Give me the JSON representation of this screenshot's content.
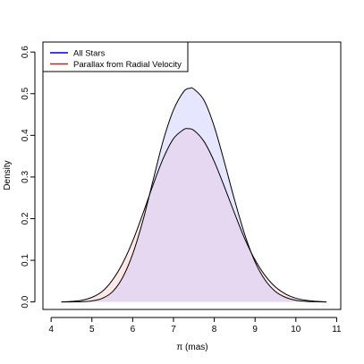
{
  "chart_data": {
    "type": "area",
    "title": "",
    "xlabel": "π (mas)",
    "ylabel": "Density",
    "xlim": [
      3.8,
      11.1
    ],
    "ylim": [
      -0.018,
      0.624
    ],
    "xticks": [
      4,
      5,
      6,
      7,
      8,
      9,
      10,
      11
    ],
    "yticks": [
      0.0,
      0.1,
      0.2,
      0.3,
      0.4,
      0.5,
      0.6
    ],
    "ytick_labels": [
      "0.0",
      "0.1",
      "0.2",
      "0.3",
      "0.4",
      "0.5",
      "0.6"
    ],
    "legend_position": "top-left",
    "grid": false,
    "series": [
      {
        "name": "All Stars",
        "color": "#0000cc",
        "fill": "rgba(190,190,255,0.38)",
        "x": [
          4.25,
          4.5,
          4.75,
          5.0,
          5.25,
          5.5,
          5.75,
          6.0,
          6.25,
          6.5,
          6.75,
          7.0,
          7.25,
          7.4,
          7.5,
          7.75,
          8.0,
          8.25,
          8.5,
          8.75,
          9.0,
          9.25,
          9.5,
          9.75,
          10.0,
          10.25,
          10.5,
          10.75
        ],
        "values": [
          0.0,
          0.0001,
          0.0006,
          0.0025,
          0.0085,
          0.024,
          0.058,
          0.115,
          0.195,
          0.292,
          0.388,
          0.461,
          0.505,
          0.513,
          0.511,
          0.484,
          0.421,
          0.335,
          0.244,
          0.161,
          0.096,
          0.052,
          0.025,
          0.011,
          0.004,
          0.0013,
          0.0004,
          0.0
        ]
      },
      {
        "name": "Parallax from Radial Velocity",
        "color": "#ee1111",
        "fill": "rgba(255,205,205,0.45)",
        "x": [
          4.25,
          4.5,
          4.75,
          5.0,
          5.25,
          5.5,
          5.75,
          6.0,
          6.25,
          6.5,
          6.75,
          7.0,
          7.25,
          7.35,
          7.5,
          7.75,
          8.0,
          8.25,
          8.5,
          8.75,
          9.0,
          9.25,
          9.5,
          9.75,
          10.0,
          10.25,
          10.5,
          10.75
        ],
        "values": [
          0.0,
          0.0012,
          0.004,
          0.011,
          0.025,
          0.052,
          0.092,
          0.146,
          0.212,
          0.281,
          0.345,
          0.392,
          0.414,
          0.416,
          0.412,
          0.385,
          0.337,
          0.276,
          0.212,
          0.151,
          0.101,
          0.063,
          0.036,
          0.019,
          0.009,
          0.004,
          0.0015,
          0.0
        ]
      }
    ]
  }
}
